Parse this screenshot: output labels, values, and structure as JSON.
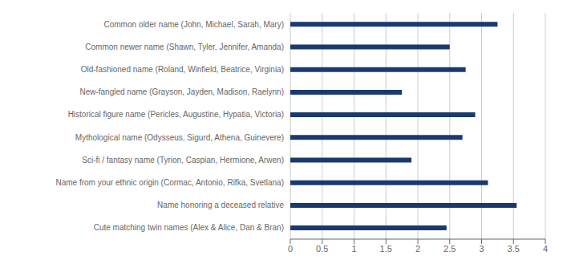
{
  "chart_data": {
    "type": "bar",
    "orientation": "horizontal",
    "categories": [
      "Common older name (John, Michael, Sarah, Mary)",
      "Common newer name (Shawn, Tyler, Jennifer, Amanda)",
      "Old-fashioned name (Roland, Winfield, Beatrice, Virginia)",
      "New-fangled name (Grayson, Jayden, Madison, Raelynn)",
      "Historical figure name (Pericles, Augustine, Hypatia, Victoria)",
      "Mythological name (Odysseus, Sigurd, Athena, Guinevere)",
      "Sci-fi / fantasy name (Tyrion, Caspian, Hermione, Arwen)",
      "Name from your ethnic origin (Cormac, Antonio, Rifka, Svetlana)",
      "Name honoring a deceased relative",
      "Cute matching twin names (Alex & Alice, Dan & Bran)"
    ],
    "values": [
      3.25,
      2.5,
      2.75,
      1.75,
      2.9,
      2.7,
      1.9,
      3.1,
      3.55,
      2.45
    ],
    "color": "#1a3a6e",
    "xlim": [
      0,
      4
    ],
    "xticks": [
      0,
      0.5,
      1,
      1.5,
      2,
      2.5,
      3,
      3.5,
      4
    ],
    "grid": true
  }
}
